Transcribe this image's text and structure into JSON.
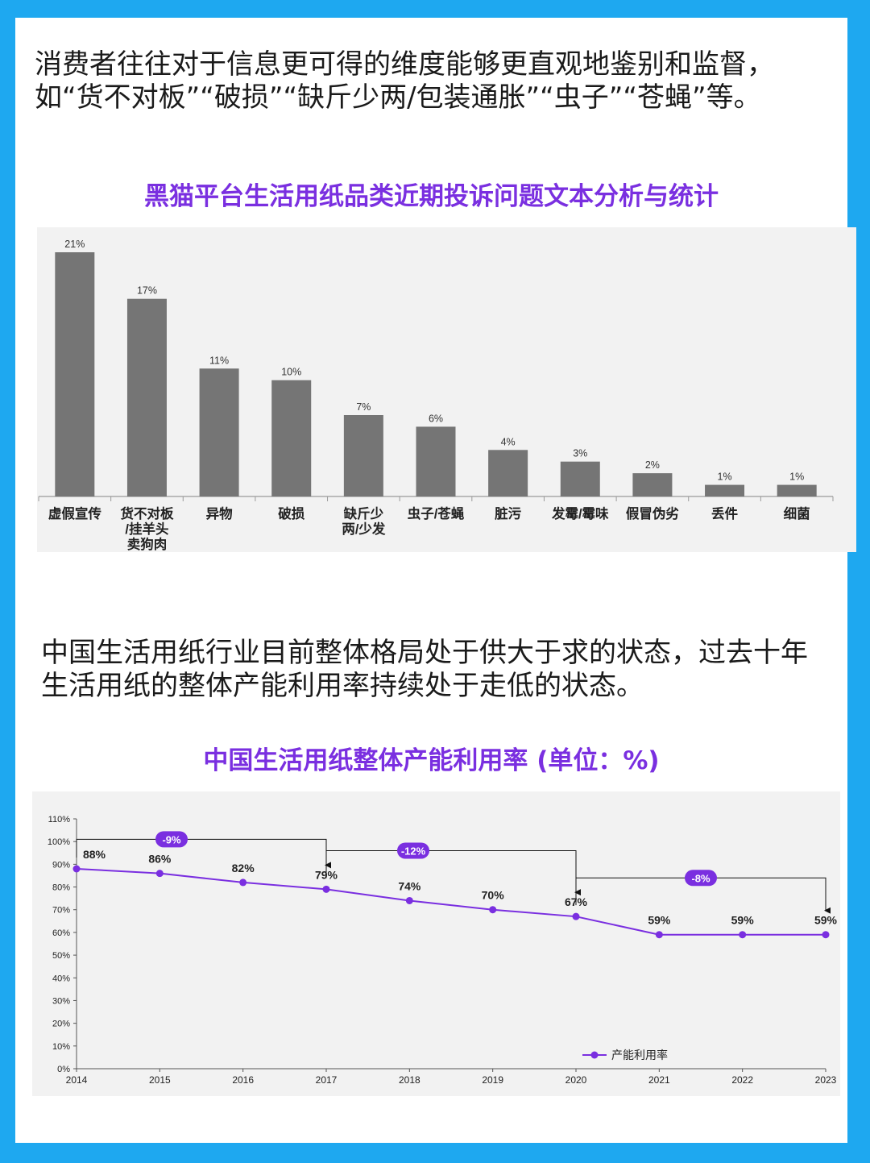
{
  "intro_text": "消费者往往对于信息更可得的维度能够更直观地鉴别和监督，如“货不对板”“破损”“缺斤少两/包装通胀”“虫子”“苍蝇”等。",
  "section2_text": "中国生活用纸行业目前整体格局处于供大于求的状态，过去十年生活用纸的整体产能利用率持续处于走低的状态。",
  "colors": {
    "background": "#1ea8f0",
    "title": "#7a2fe0",
    "bar": "#757575",
    "line": "#7a2fe0"
  },
  "chart_data": [
    {
      "type": "bar",
      "title": "黑猫平台生活用纸品类近期投诉问题文本分析与统计",
      "categories": [
        "虚假宣传",
        "货不对板/挂羊头卖狗肉",
        "异物",
        "破损",
        "缺斤少两/少发",
        "虫子/苍蝇",
        "脏污",
        "发霉/霉味",
        "假冒伪劣",
        "丢件",
        "细菌"
      ],
      "category_lines": [
        [
          "虚假宣传"
        ],
        [
          "货不对板",
          "/挂羊头",
          "卖狗肉"
        ],
        [
          "异物"
        ],
        [
          "破损"
        ],
        [
          "缺斤少",
          "两/少发"
        ],
        [
          "虫子/苍蝇"
        ],
        [
          "脏污"
        ],
        [
          "发霉/霉味"
        ],
        [
          "假冒伪劣"
        ],
        [
          "丢件"
        ],
        [
          "细菌"
        ]
      ],
      "values": [
        21,
        17,
        11,
        10,
        7,
        6,
        4,
        3,
        2,
        1,
        1
      ],
      "value_labels": [
        "21%",
        "17%",
        "11%",
        "10%",
        "7%",
        "6%",
        "4%",
        "3%",
        "2%",
        "1%",
        "1%"
      ],
      "unit": "%",
      "ylim": [
        0,
        21
      ]
    },
    {
      "type": "line",
      "title": "中国生活用纸整体产能利用率 (单位：%)",
      "x": [
        "2014",
        "2015",
        "2016",
        "2017",
        "2018",
        "2019",
        "2020",
        "2021",
        "2022",
        "2023"
      ],
      "series": [
        {
          "name": "产能利用率",
          "values": [
            88,
            86,
            82,
            79,
            74,
            70,
            67,
            59,
            59,
            59
          ],
          "labels": [
            "88%",
            "86%",
            "82%",
            "79%",
            "74%",
            "70%",
            "67%",
            "59%",
            "59%",
            "59%"
          ]
        }
      ],
      "yticks": [
        "0%",
        "10%",
        "20%",
        "30%",
        "40%",
        "50%",
        "60%",
        "70%",
        "80%",
        "90%",
        "100%",
        "110%"
      ],
      "ylim": [
        0,
        110
      ],
      "legend": "bottom-right",
      "annotations": [
        {
          "from": "2014",
          "to": "2017",
          "label": "-9%"
        },
        {
          "from": "2017",
          "to": "2020",
          "label": "-12%"
        },
        {
          "from": "2020",
          "to": "2023",
          "label": "-8%"
        }
      ]
    }
  ]
}
